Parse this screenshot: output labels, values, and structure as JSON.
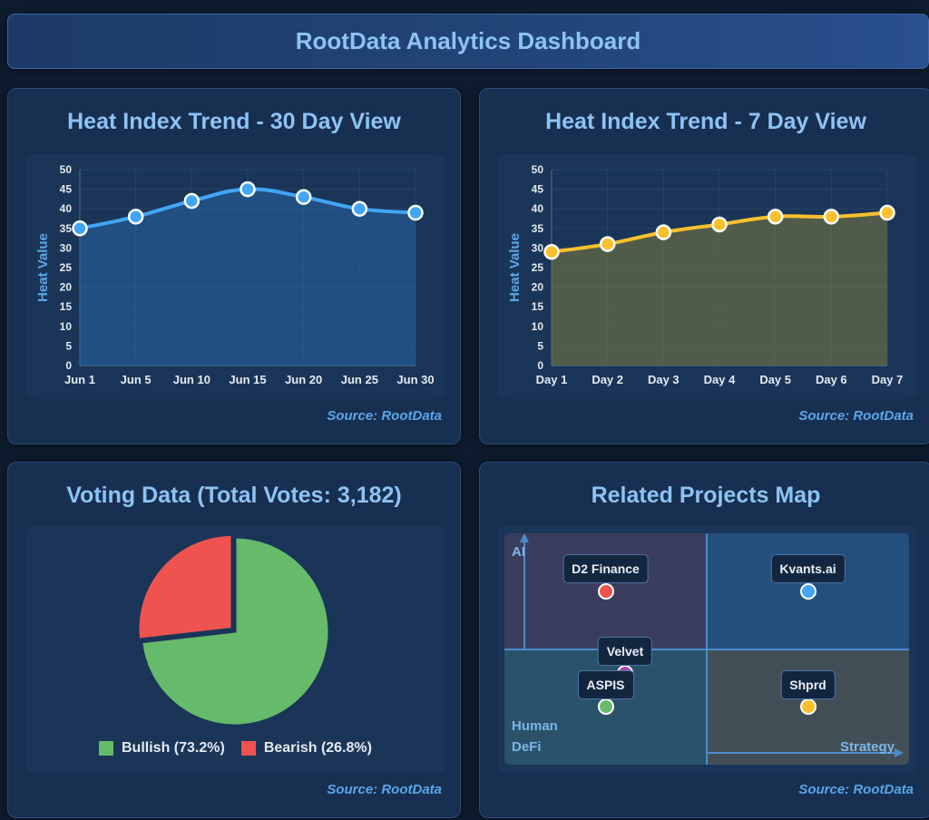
{
  "header": {
    "title": "RootData Analytics Dashboard"
  },
  "charts": {
    "trend30": {
      "title": "Heat Index Trend - 30 Day View",
      "source": "Source: RootData"
    },
    "trend7": {
      "title": "Heat Index Trend - 7 Day View",
      "source": "Source: RootData"
    },
    "voting": {
      "title": "Voting Data (Total Votes: 3,182)",
      "source": "Source: RootData"
    },
    "map": {
      "title": "Related Projects Map",
      "source": "Source: RootData"
    }
  },
  "colors": {
    "line30": "#42a5f5",
    "line7": "#fbc02d",
    "bullish": "#66bb6a",
    "bearish": "#ef5350"
  },
  "chart_data": [
    {
      "type": "area",
      "title": "Heat Index Trend - 30 Day View",
      "xlabel": "",
      "ylabel": "Heat Value",
      "categories": [
        "Jun 1",
        "Jun 5",
        "Jun 10",
        "Jun 15",
        "Jun 20",
        "Jun 25",
        "Jun 30"
      ],
      "series": [
        {
          "values": [
            35,
            38,
            42,
            45,
            43,
            40,
            39
          ]
        }
      ],
      "ylim": [
        0,
        50
      ],
      "yticks": [
        "0",
        "5",
        "10",
        "15",
        "20",
        "25",
        "30",
        "35",
        "40",
        "45",
        "50"
      ],
      "grid": true
    },
    {
      "type": "area",
      "title": "Heat Index Trend - 7 Day View",
      "xlabel": "",
      "ylabel": "Heat Value",
      "categories": [
        "Day 1",
        "Day 2",
        "Day 3",
        "Day 4",
        "Day 5",
        "Day 6",
        "Day 7"
      ],
      "series": [
        {
          "values": [
            29,
            31,
            34,
            36,
            38,
            38,
            39
          ]
        }
      ],
      "ylim": [
        0,
        50
      ],
      "yticks": [
        "0",
        "5",
        "10",
        "15",
        "20",
        "25",
        "30",
        "35",
        "40",
        "45",
        "50"
      ],
      "grid": true
    },
    {
      "type": "pie",
      "title": "Voting Data (Total Votes: 3,182)",
      "slices": [
        {
          "label": "Bullish (73.2%)",
          "value": 73.2
        },
        {
          "label": "Bearish (26.8%)",
          "value": 26.8
        }
      ],
      "legend": "bottom"
    },
    {
      "type": "scatter",
      "title": "Related Projects Map",
      "axis_labels": {
        "top": "AI",
        "left_1": "Human",
        "left_2": "DeFi",
        "right": "Strategy"
      },
      "points": [
        {
          "label": "D2 Finance",
          "x": -0.5,
          "y": 0.6,
          "color": "#ef5350"
        },
        {
          "label": "Kvants.ai",
          "x": 0.5,
          "y": 0.6,
          "color": "#42a5f5"
        },
        {
          "label": "Velvet",
          "x": -0.4,
          "y": -0.2,
          "color": "#ab47bc"
        },
        {
          "label": "ASPIS",
          "x": -0.5,
          "y": -0.5,
          "color": "#66bb6a"
        },
        {
          "label": "Shprd",
          "x": 0.5,
          "y": -0.5,
          "color": "#fbc02d"
        }
      ],
      "xlim": [
        -1,
        1
      ],
      "ylim": [
        -1,
        1
      ]
    }
  ]
}
